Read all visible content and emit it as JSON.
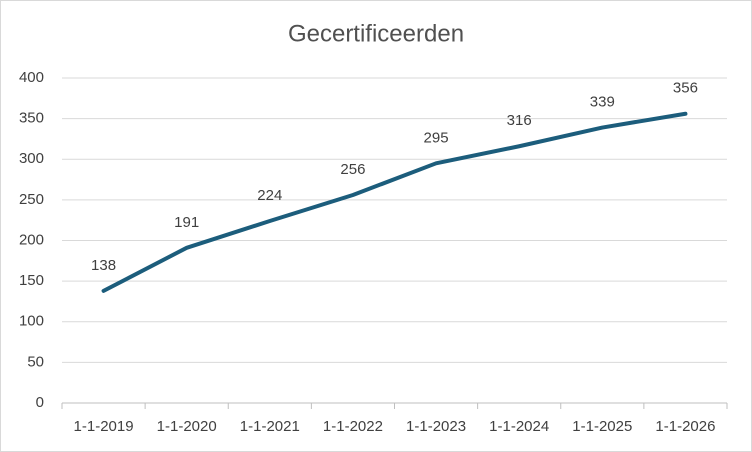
{
  "chart_data": {
    "type": "line",
    "title": "Gecertificeerden",
    "categories": [
      "1-1-2019",
      "1-1-2020",
      "1-1-2021",
      "1-1-2022",
      "1-1-2023",
      "1-1-2024",
      "1-1-2025",
      "1-1-2026"
    ],
    "values": [
      138,
      191,
      224,
      256,
      295,
      316,
      339,
      356
    ],
    "color": "#1c5d7c",
    "ylim": [
      0,
      400
    ],
    "yticks": [
      0,
      50,
      100,
      150,
      200,
      250,
      300,
      350,
      400
    ],
    "grid": true
  }
}
